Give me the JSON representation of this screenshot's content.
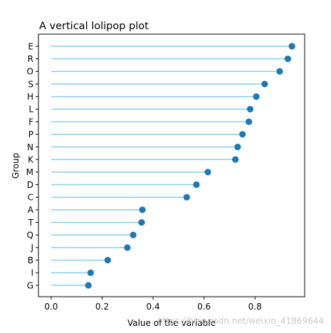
{
  "chart_data": {
    "type": "lollipop",
    "orientation": "horizontal",
    "title": "A vertical lolipop plot",
    "xlabel": "Value of the variable",
    "ylabel": "Group",
    "xlim": [
      -0.05,
      0.995
    ],
    "xticks": [
      0.0,
      0.2,
      0.4,
      0.6,
      0.8
    ],
    "xtick_labels": [
      "0.0",
      "0.2",
      "0.4",
      "0.6",
      "0.8"
    ],
    "categories": [
      "E",
      "R",
      "O",
      "S",
      "H",
      "L",
      "F",
      "P",
      "N",
      "K",
      "M",
      "D",
      "C",
      "A",
      "T",
      "Q",
      "J",
      "B",
      "I",
      "G"
    ],
    "values": [
      0.945,
      0.929,
      0.897,
      0.838,
      0.805,
      0.781,
      0.776,
      0.751,
      0.732,
      0.723,
      0.615,
      0.57,
      0.532,
      0.358,
      0.355,
      0.322,
      0.299,
      0.222,
      0.155,
      0.146
    ],
    "stem_color": "#87ceeb",
    "marker_color": "#1f77b4",
    "grid": false,
    "legend": "none"
  },
  "watermark": "https://blog.csdn.net/weixin_41869644"
}
